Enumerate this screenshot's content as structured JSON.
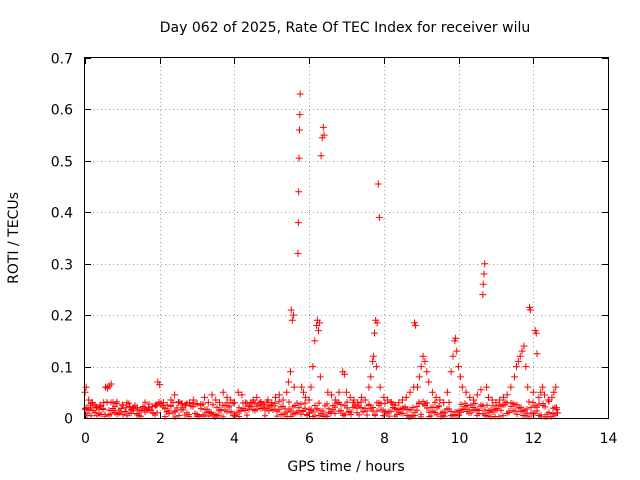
{
  "chart_data": {
    "type": "scatter",
    "title": "Day 062 of 2025, Rate Of TEC Index for receiver wilu",
    "xlabel": "GPS time / hours",
    "ylabel": "ROTI / TECUs",
    "xlim": [
      0,
      14
    ],
    "ylim": [
      0,
      0.7
    ],
    "xticks": [
      0,
      2,
      4,
      6,
      8,
      10,
      12,
      14
    ],
    "yticks": [
      0,
      0.1,
      0.2,
      0.3,
      0.4,
      0.5,
      0.6,
      0.7
    ],
    "xtick_labels": [
      "0",
      "2",
      "4",
      "6",
      "8",
      "10",
      "12",
      "14"
    ],
    "ytick_labels": [
      "0",
      "0.1",
      "0.2",
      "0.3",
      "0.4",
      "0.5",
      "0.6",
      "0.7"
    ],
    "grid": true,
    "marker": "+",
    "series": [
      {
        "name": "ROTI",
        "color": "#ff0000",
        "points": [
          [
            0.0,
            0.05
          ],
          [
            0.03,
            0.06
          ],
          [
            0.05,
            0.02
          ],
          [
            0.1,
            0.035
          ],
          [
            0.15,
            0.025
          ],
          [
            0.2,
            0.03
          ],
          [
            0.3,
            0.02
          ],
          [
            0.4,
            0.025
          ],
          [
            0.5,
            0.03
          ],
          [
            0.55,
            0.06
          ],
          [
            0.6,
            0.058
          ],
          [
            0.65,
            0.062
          ],
          [
            0.7,
            0.066
          ],
          [
            0.75,
            0.03
          ],
          [
            0.85,
            0.028
          ],
          [
            1.0,
            0.025
          ],
          [
            1.1,
            0.02
          ],
          [
            1.2,
            0.022
          ],
          [
            1.3,
            0.018
          ],
          [
            1.4,
            0.02
          ],
          [
            1.5,
            0.015
          ],
          [
            1.6,
            0.018
          ],
          [
            1.7,
            0.02
          ],
          [
            1.8,
            0.022
          ],
          [
            1.9,
            0.025
          ],
          [
            1.95,
            0.07
          ],
          [
            2.0,
            0.065
          ],
          [
            2.1,
            0.03
          ],
          [
            2.2,
            0.025
          ],
          [
            2.3,
            0.035
          ],
          [
            2.4,
            0.045
          ],
          [
            2.5,
            0.03
          ],
          [
            2.6,
            0.028
          ],
          [
            2.7,
            0.025
          ],
          [
            2.8,
            0.03
          ],
          [
            2.9,
            0.035
          ],
          [
            3.0,
            0.028
          ],
          [
            3.1,
            0.025
          ],
          [
            3.2,
            0.04
          ],
          [
            3.3,
            0.03
          ],
          [
            3.4,
            0.045
          ],
          [
            3.5,
            0.035
          ],
          [
            3.6,
            0.03
          ],
          [
            3.7,
            0.05
          ],
          [
            3.8,
            0.04
          ],
          [
            3.9,
            0.035
          ],
          [
            4.0,
            0.03
          ],
          [
            4.1,
            0.05
          ],
          [
            4.2,
            0.045
          ],
          [
            4.3,
            0.03
          ],
          [
            4.4,
            0.025
          ],
          [
            4.5,
            0.035
          ],
          [
            4.6,
            0.04
          ],
          [
            4.7,
            0.03
          ],
          [
            4.8,
            0.025
          ],
          [
            4.9,
            0.035
          ],
          [
            5.0,
            0.03
          ],
          [
            5.1,
            0.04
          ],
          [
            5.2,
            0.045
          ],
          [
            5.3,
            0.035
          ],
          [
            5.4,
            0.05
          ],
          [
            5.45,
            0.07
          ],
          [
            5.5,
            0.09
          ],
          [
            5.52,
            0.21
          ],
          [
            5.55,
            0.19
          ],
          [
            5.58,
            0.2
          ],
          [
            5.6,
            0.06
          ],
          [
            5.7,
            0.32
          ],
          [
            5.71,
            0.38
          ],
          [
            5.72,
            0.44
          ],
          [
            5.73,
            0.505
          ],
          [
            5.74,
            0.56
          ],
          [
            5.75,
            0.59
          ],
          [
            5.76,
            0.63
          ],
          [
            5.8,
            0.06
          ],
          [
            5.85,
            0.05
          ],
          [
            5.9,
            0.04
          ],
          [
            6.0,
            0.035
          ],
          [
            6.05,
            0.06
          ],
          [
            6.1,
            0.1
          ],
          [
            6.15,
            0.15
          ],
          [
            6.2,
            0.18
          ],
          [
            6.22,
            0.19
          ],
          [
            6.25,
            0.17
          ],
          [
            6.28,
            0.185
          ],
          [
            6.3,
            0.08
          ],
          [
            6.32,
            0.51
          ],
          [
            6.35,
            0.545
          ],
          [
            6.38,
            0.565
          ],
          [
            6.4,
            0.55
          ],
          [
            6.5,
            0.05
          ],
          [
            6.6,
            0.045
          ],
          [
            6.7,
            0.035
          ],
          [
            6.8,
            0.05
          ],
          [
            6.9,
            0.09
          ],
          [
            6.95,
            0.085
          ],
          [
            7.0,
            0.05
          ],
          [
            7.1,
            0.04
          ],
          [
            7.2,
            0.035
          ],
          [
            7.3,
            0.03
          ],
          [
            7.4,
            0.04
          ],
          [
            7.5,
            0.035
          ],
          [
            7.6,
            0.06
          ],
          [
            7.65,
            0.08
          ],
          [
            7.7,
            0.11
          ],
          [
            7.72,
            0.12
          ],
          [
            7.75,
            0.165
          ],
          [
            7.78,
            0.19
          ],
          [
            7.8,
            0.1
          ],
          [
            7.82,
            0.185
          ],
          [
            7.85,
            0.455
          ],
          [
            7.88,
            0.39
          ],
          [
            7.9,
            0.06
          ],
          [
            8.0,
            0.04
          ],
          [
            8.1,
            0.035
          ],
          [
            8.2,
            0.03
          ],
          [
            8.3,
            0.025
          ],
          [
            8.4,
            0.03
          ],
          [
            8.5,
            0.035
          ],
          [
            8.6,
            0.04
          ],
          [
            8.7,
            0.05
          ],
          [
            8.8,
            0.06
          ],
          [
            8.82,
            0.185
          ],
          [
            8.85,
            0.18
          ],
          [
            8.9,
            0.06
          ],
          [
            8.95,
            0.08
          ],
          [
            9.0,
            0.1
          ],
          [
            9.05,
            0.12
          ],
          [
            9.1,
            0.11
          ],
          [
            9.15,
            0.09
          ],
          [
            9.2,
            0.07
          ],
          [
            9.3,
            0.05
          ],
          [
            9.4,
            0.04
          ],
          [
            9.5,
            0.035
          ],
          [
            9.6,
            0.03
          ],
          [
            9.7,
            0.05
          ],
          [
            9.8,
            0.09
          ],
          [
            9.85,
            0.12
          ],
          [
            9.9,
            0.15
          ],
          [
            9.92,
            0.155
          ],
          [
            9.95,
            0.13
          ],
          [
            10.0,
            0.1
          ],
          [
            10.05,
            0.08
          ],
          [
            10.1,
            0.06
          ],
          [
            10.2,
            0.05
          ],
          [
            10.3,
            0.04
          ],
          [
            10.4,
            0.035
          ],
          [
            10.5,
            0.045
          ],
          [
            10.6,
            0.055
          ],
          [
            10.65,
            0.24
          ],
          [
            10.66,
            0.26
          ],
          [
            10.68,
            0.28
          ],
          [
            10.7,
            0.3
          ],
          [
            10.75,
            0.06
          ],
          [
            10.8,
            0.04
          ],
          [
            10.9,
            0.035
          ],
          [
            11.0,
            0.03
          ],
          [
            11.1,
            0.035
          ],
          [
            11.2,
            0.04
          ],
          [
            11.3,
            0.045
          ],
          [
            11.4,
            0.06
          ],
          [
            11.5,
            0.08
          ],
          [
            11.55,
            0.1
          ],
          [
            11.6,
            0.11
          ],
          [
            11.65,
            0.12
          ],
          [
            11.7,
            0.13
          ],
          [
            11.75,
            0.14
          ],
          [
            11.8,
            0.1
          ],
          [
            11.85,
            0.06
          ],
          [
            11.9,
            0.215
          ],
          [
            11.92,
            0.21
          ],
          [
            12.0,
            0.05
          ],
          [
            12.05,
            0.17
          ],
          [
            12.08,
            0.165
          ],
          [
            12.1,
            0.125
          ],
          [
            12.15,
            0.04
          ],
          [
            12.2,
            0.05
          ],
          [
            12.25,
            0.06
          ],
          [
            12.3,
            0.045
          ],
          [
            12.4,
            0.035
          ],
          [
            12.5,
            0.04
          ],
          [
            12.55,
            0.05
          ],
          [
            12.6,
            0.06
          ],
          [
            12.62,
            0.02
          ],
          [
            12.65,
            0.01
          ]
        ]
      }
    ]
  }
}
